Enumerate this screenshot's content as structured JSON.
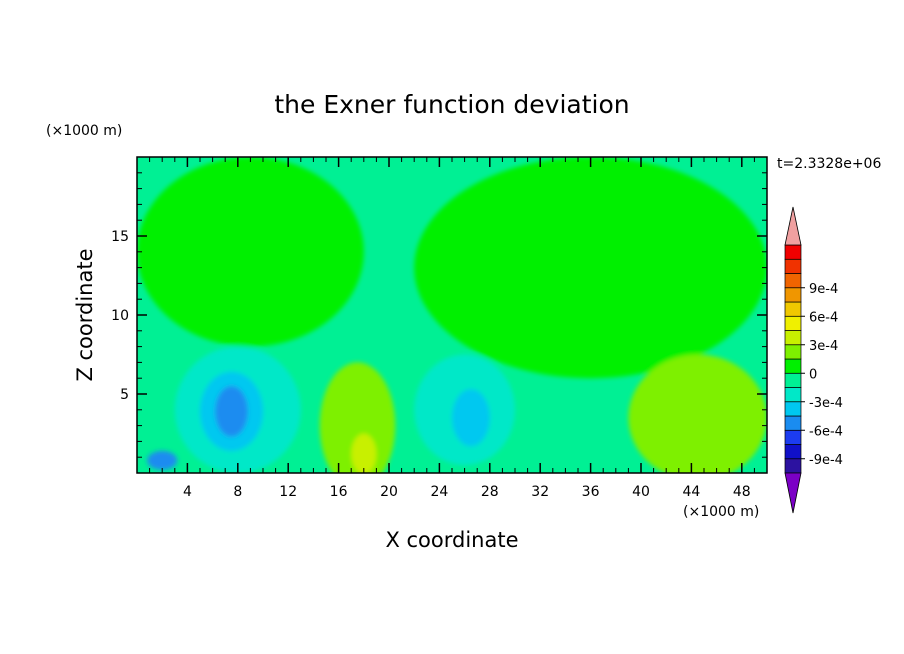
{
  "chart_data": {
    "type": "heatmap",
    "title": "the Exner function deviation",
    "xlabel": "X coordinate",
    "ylabel": "Z coordinate",
    "x_unit": "(×1000 m)",
    "y_unit": "(×1000 m)",
    "time_label": "t=2.3328e+06",
    "xlim": [
      0,
      50
    ],
    "ylim": [
      0,
      20
    ],
    "x_ticks": [
      4,
      8,
      12,
      16,
      20,
      24,
      28,
      32,
      36,
      40,
      44,
      48
    ],
    "y_ticks": [
      5,
      10,
      15
    ],
    "colorbar": {
      "levels": [
        -0.0009,
        -0.0006,
        -0.0003,
        0,
        0.0003,
        0.0006,
        0.0009
      ],
      "labels": [
        "-9e-4",
        "-6e-4",
        "-3e-4",
        "0",
        "3e-4",
        "6e-4",
        "9e-4"
      ],
      "colors": [
        "#7b00c6",
        "#2c12a0",
        "#1010c8",
        "#1c3cf0",
        "#1a8cf0",
        "#00c8f0",
        "#00e8c8",
        "#00f094",
        "#00f000",
        "#7ef000",
        "#c8f000",
        "#f0f000",
        "#f0c800",
        "#f09600",
        "#f06400",
        "#f03200",
        "#f00000",
        "#f0a0a0"
      ]
    },
    "field_regions": [
      {
        "x": 9,
        "z": 14,
        "rx": 9,
        "rz": 6,
        "level": "0 to 1.5e-4"
      },
      {
        "x": 36,
        "z": 13,
        "rx": 14,
        "rz": 7,
        "level": "0 to 1.5e-4"
      },
      {
        "x": 8,
        "z": 4,
        "rx": 5,
        "rz": 4,
        "level": "-1.5e-4 to 0"
      },
      {
        "x": 7.5,
        "z": 3.9,
        "rx": 2.5,
        "rz": 2.5,
        "level": "-3e-4 to -1.5e-4"
      },
      {
        "x": 7.5,
        "z": 3.9,
        "rx": 1.3,
        "rz": 1.6,
        "level": "-4.5e-4 to -3e-4"
      },
      {
        "x": 17.5,
        "z": 3,
        "rx": 3,
        "rz": 4,
        "level": "1.5e-4 to 3e-4"
      },
      {
        "x": 18,
        "z": 1.2,
        "rx": 1,
        "rz": 1.3,
        "level": "3e-4 to 4.5e-4"
      },
      {
        "x": 26,
        "z": 4,
        "rx": 4,
        "rz": 3.5,
        "level": "-1.5e-4 to 0"
      },
      {
        "x": 26.5,
        "z": 3.5,
        "rx": 1.5,
        "rz": 1.8,
        "level": "-3e-4 to -1.5e-4"
      },
      {
        "x": 44.5,
        "z": 3.5,
        "rx": 5.5,
        "rz": 4,
        "level": "1.5e-4 to 3e-4"
      },
      {
        "x": 2,
        "z": 0.8,
        "rx": 1.2,
        "rz": 0.6,
        "level": "-4.5e-4 to -3e-4"
      }
    ]
  }
}
